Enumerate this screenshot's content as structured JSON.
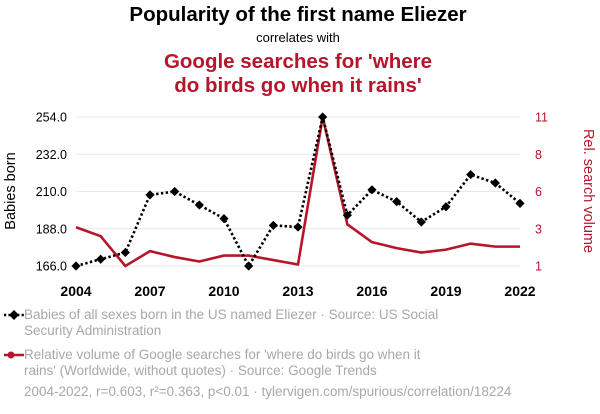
{
  "chart_data": {
    "type": "line",
    "title": "Popularity of the first name Eliezer",
    "subtitle": "correlates with",
    "title2": "Google searches for 'where do birds go when it rains'",
    "title2_lines": [
      "Google searches for 'where",
      "do birds go when it rains'"
    ],
    "x": [
      2004,
      2005,
      2006,
      2007,
      2008,
      2009,
      2010,
      2011,
      2012,
      2013,
      2014,
      2015,
      2016,
      2017,
      2018,
      2019,
      2020,
      2021,
      2022
    ],
    "x_ticks": [
      "2004",
      "2007",
      "2010",
      "2013",
      "2016",
      "2019",
      "2022"
    ],
    "xlim": [
      2004,
      2022
    ],
    "y_left": {
      "label": "Babies born",
      "ticks": [
        "166.0",
        "188.0",
        "210.0",
        "232.0",
        "254.0"
      ],
      "ylim": [
        166,
        254
      ]
    },
    "y_right": {
      "label": "Rel. search volume",
      "ticks": [
        "1",
        "3",
        "6",
        "8",
        "11"
      ],
      "ylim": [
        1,
        11
      ]
    },
    "grid": true,
    "series": [
      {
        "name": "Babies of all sexes born in the US named Eliezer · Source: US Social Security Administration",
        "axis": "left",
        "color": "#000000",
        "style": "dotted",
        "marker": "diamond",
        "values": [
          166,
          170,
          174,
          208,
          210,
          202,
          194,
          166,
          190,
          189,
          254,
          196,
          211,
          204,
          192,
          201,
          220,
          215,
          203
        ]
      },
      {
        "name": "Relative volume of Google searches for 'where do birds go when it rains' (Worldwide, without quotes) · Source: Google Trends",
        "axis": "right",
        "color": "#b5162b",
        "style": "solid",
        "marker": "none",
        "values": [
          3.6,
          3.0,
          1.0,
          2.0,
          1.6,
          1.3,
          1.7,
          1.7,
          1.4,
          1.1,
          11.0,
          3.8,
          2.6,
          2.2,
          1.9,
          2.1,
          2.5,
          2.3,
          2.3
        ]
      }
    ]
  },
  "legend": {
    "item1_line1": "Babies of all sexes born in the US named Eliezer · Source: US Social",
    "item1_line2": "Security Administration",
    "item2_line1": "Relative volume of Google searches for 'where do birds go when it",
    "item2_line2": "rains' (Worldwide, without quotes) · Source: Google Trends"
  },
  "footer": "2004-2022, r=0.603, r²=0.363, p<0.01 · tylervigen.com/spurious/correlation/18224"
}
